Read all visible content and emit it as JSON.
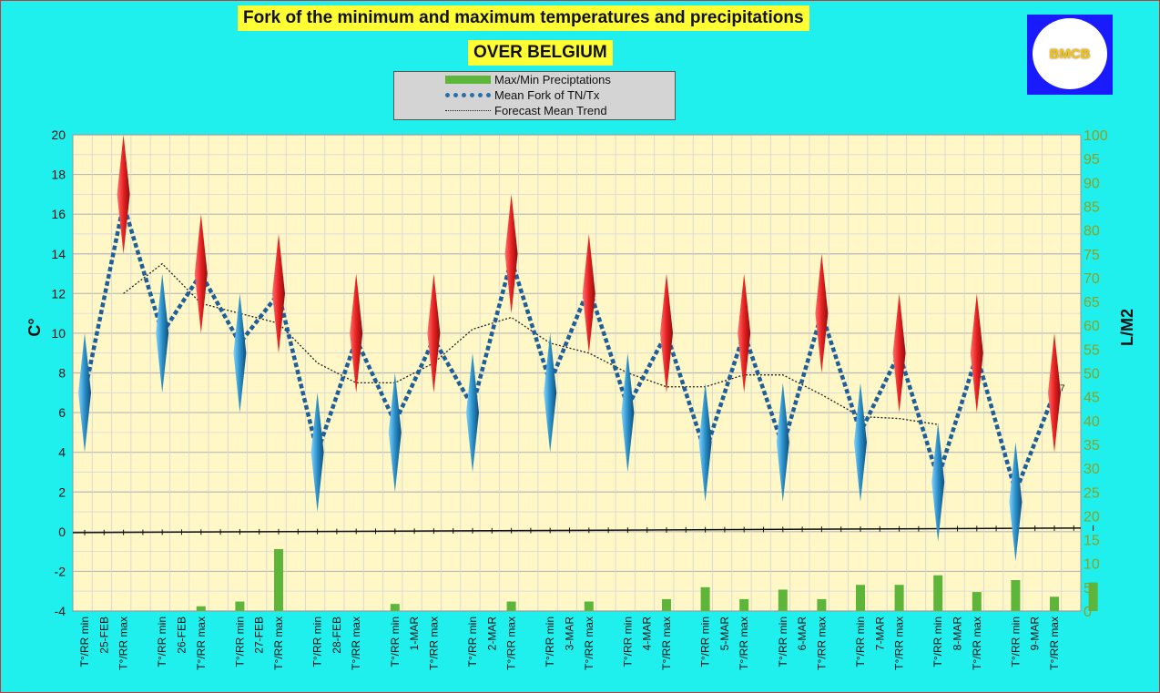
{
  "header": {
    "title": "Fork of the minimum and maximum temperatures and precipitations",
    "subtitle": "OVER BELGIUM",
    "logo_text": "BMCB"
  },
  "legend": {
    "items": [
      {
        "label": "Max/Min Preciptations",
        "color": "#5db53a"
      },
      {
        "label": "Mean Fork of TN/Tx",
        "color": "#2a6faa"
      },
      {
        "label": "Forecast Mean Trend",
        "color": "#222222"
      }
    ]
  },
  "colors": {
    "plot_bg": "#fff7c6",
    "page_bg": "#1ff0ee",
    "max_spike": "#dd2222",
    "min_spike": "#2a8fc8",
    "mean_line": "#1f5f99",
    "precip": "#5db53a",
    "right_axis_text": "#8fa020"
  },
  "chart_data": {
    "type": "line",
    "ylabel": "C°",
    "ylabel_right": "L/M2",
    "ylim": [
      -4,
      20
    ],
    "yticks": [
      -4,
      -2,
      0,
      2,
      4,
      6,
      8,
      10,
      12,
      14,
      16,
      18,
      20
    ],
    "ylim_right": [
      0,
      100
    ],
    "yticks_right": [
      0,
      5,
      10,
      15,
      20,
      25,
      30,
      35,
      40,
      45,
      50,
      55,
      60,
      65,
      70,
      75,
      80,
      85,
      90,
      95,
      100
    ],
    "categories": [
      "T°/RR min",
      "25-FEB",
      "T°/RR max",
      "T°/RR min",
      "26-FEB",
      "T°/RR max",
      "T°/RR min",
      "27-FEB",
      "T°/RR max",
      "T°/RR min",
      "28-FEB",
      "T°/RR max",
      "T°/RR min",
      "1-MAR",
      "T°/RR max",
      "T°/RR min",
      "2-MAR",
      "T°/RR max",
      "T°/RR min",
      "3-MAR",
      "T°/RR max",
      "T°/RR min",
      "4-MAR",
      "T°/RR max",
      "T°/RR min",
      "5-MAR",
      "T°/RR max",
      "T°/RR min",
      "6-MAR",
      "T°/RR max",
      "T°/RR min",
      "7-MAR",
      "T°/RR max",
      "T°/RR min",
      "8-MAR",
      "T°/RR max",
      "T°/RR min",
      "9-MAR",
      "T°/RR max"
    ],
    "series": [
      {
        "name": "Mean Fork of TN/Tx",
        "points": [
          [
            0,
            7
          ],
          [
            2,
            16.5
          ],
          [
            4,
            10
          ],
          [
            6,
            13
          ],
          [
            8,
            9.5
          ],
          [
            10,
            12
          ],
          [
            12,
            4
          ],
          [
            14,
            9.7
          ],
          [
            16,
            5.5
          ],
          [
            18,
            9.7
          ],
          [
            20,
            6.3
          ],
          [
            22,
            13.7
          ],
          [
            24,
            7.5
          ],
          [
            26,
            12.3
          ],
          [
            28,
            6.3
          ],
          [
            30,
            10
          ],
          [
            32,
            4
          ],
          [
            34,
            10
          ],
          [
            36,
            4.3
          ],
          [
            38,
            11
          ],
          [
            40,
            5
          ],
          [
            42,
            9
          ],
          [
            44,
            2.7
          ],
          [
            46,
            8.9
          ],
          [
            48,
            2
          ],
          [
            50,
            7
          ]
        ]
      },
      {
        "name": "Forecast Mean Trend",
        "points": [
          [
            2,
            12
          ],
          [
            4,
            13.5
          ],
          [
            6,
            11.5
          ],
          [
            8,
            11
          ],
          [
            10,
            10.5
          ],
          [
            12,
            8.5
          ],
          [
            14,
            7.5
          ],
          [
            16,
            7.5
          ],
          [
            18,
            8.5
          ],
          [
            20,
            10.2
          ],
          [
            22,
            10.8
          ],
          [
            24,
            9.5
          ],
          [
            26,
            9
          ],
          [
            28,
            8
          ],
          [
            30,
            7.3
          ],
          [
            32,
            7.3
          ],
          [
            34,
            7.9
          ],
          [
            36,
            7.9
          ],
          [
            38,
            6.9
          ],
          [
            40,
            5.8
          ],
          [
            42,
            5.7
          ],
          [
            44,
            5.4
          ]
        ]
      },
      {
        "name": "Max spikes (Tx range)",
        "ranges": [
          [
            2,
            14,
            20
          ],
          [
            6,
            10,
            16
          ],
          [
            10,
            9,
            15
          ],
          [
            14,
            7,
            13
          ],
          [
            18,
            7,
            13
          ],
          [
            22,
            11,
            17
          ],
          [
            26,
            9,
            15
          ],
          [
            30,
            7,
            13
          ],
          [
            34,
            7,
            13
          ],
          [
            38,
            8,
            14
          ],
          [
            42,
            6,
            12
          ],
          [
            46,
            6,
            12
          ],
          [
            50,
            4,
            10
          ]
        ]
      },
      {
        "name": "Min spikes (Tn range)",
        "ranges": [
          [
            0,
            4,
            10
          ],
          [
            4,
            7,
            13
          ],
          [
            8,
            6,
            12
          ],
          [
            12,
            1,
            7
          ],
          [
            16,
            2,
            8
          ],
          [
            20,
            3,
            9
          ],
          [
            24,
            4,
            10
          ],
          [
            28,
            3,
            9
          ],
          [
            32,
            1.5,
            7.5
          ],
          [
            36,
            1.5,
            7.5
          ],
          [
            40,
            1.5,
            7.5
          ],
          [
            44,
            -0.5,
            5.5
          ],
          [
            48,
            -1.5,
            4.5
          ]
        ]
      },
      {
        "name": "Max/Min Preciptations",
        "axis": "right",
        "points": [
          [
            6,
            1
          ],
          [
            8,
            2
          ],
          [
            10,
            13
          ],
          [
            16,
            1.5
          ],
          [
            22,
            2
          ],
          [
            26,
            2
          ],
          [
            30,
            2.5
          ],
          [
            32,
            5
          ],
          [
            34,
            2.5
          ],
          [
            36,
            4.5
          ],
          [
            38,
            2.5
          ],
          [
            40,
            5.5
          ],
          [
            42,
            5.5
          ],
          [
            44,
            7.5
          ],
          [
            46,
            4
          ],
          [
            48,
            6.5
          ],
          [
            50,
            3
          ],
          [
            52,
            6
          ]
        ]
      }
    ],
    "end_label": "7",
    "grid": true
  }
}
